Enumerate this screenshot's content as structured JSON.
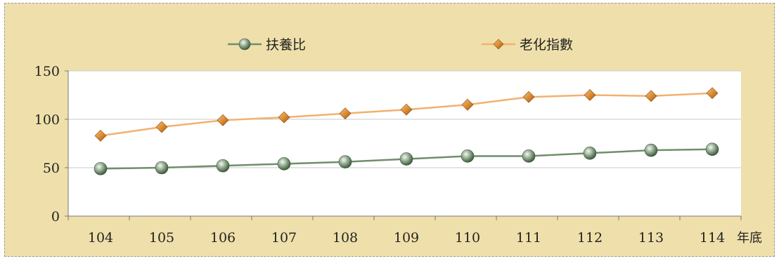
{
  "chart_data": {
    "type": "line",
    "categories": [
      "104",
      "105",
      "106",
      "107",
      "108",
      "109",
      "110",
      "111",
      "112",
      "113",
      "114"
    ],
    "x_unit_label": "年底",
    "series": [
      {
        "name": "扶養比",
        "color": "#6f8f6a",
        "marker": "sphere",
        "values": [
          49,
          50,
          52,
          54,
          56,
          59,
          62,
          62,
          65,
          68,
          69
        ]
      },
      {
        "name": "老化指數",
        "color": "#f3b070",
        "marker": "diamond",
        "values": [
          83,
          92,
          99,
          102,
          106,
          110,
          115,
          123,
          125,
          124,
          127
        ]
      }
    ],
    "ylim": [
      0,
      150
    ],
    "yticks": [
      0,
      50,
      100,
      150
    ],
    "grid": true,
    "legend": "top-center"
  }
}
